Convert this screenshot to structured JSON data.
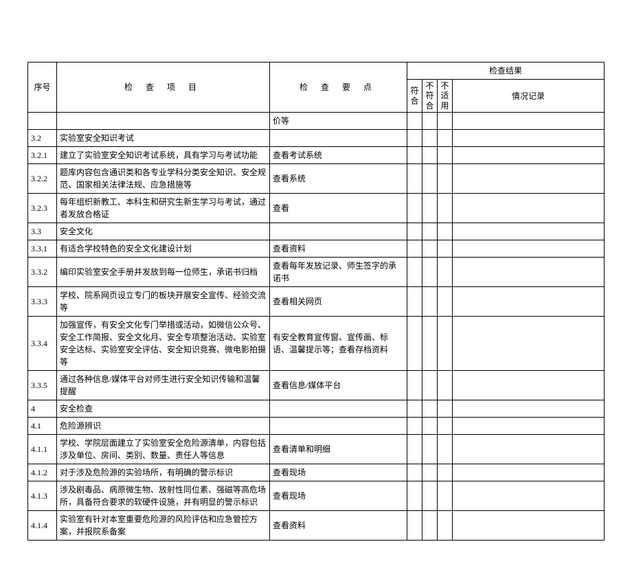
{
  "header": {
    "seq": "序号",
    "item": "检 查 项 目",
    "point": "检 查 要 点",
    "result": "检查结果",
    "conform": "符合",
    "nonconform": "不符合",
    "na": "不适用",
    "notes": "情况记录"
  },
  "rows": [
    {
      "seq": "",
      "item": "",
      "point": "价等"
    },
    {
      "seq": "3.2",
      "item": "实验室安全知识考试",
      "point": ""
    },
    {
      "seq": "3.2.1",
      "item": "建立了实验室安全知识考试系统，具有学习与考试功能",
      "point": "查看考试系统"
    },
    {
      "seq": "3.2.2",
      "item": "题库内容包含通识类和各专业学科分类安全知识、安全规范、国家相关法律法规、应急措施等",
      "point": "查看系统"
    },
    {
      "seq": "3.2.3",
      "item": "每年组织新教工、本科生和研究生新生学习与考试，通过者发放合格证",
      "point": "查看"
    },
    {
      "seq": "3.3",
      "item": "安全文化",
      "point": ""
    },
    {
      "seq": "3.3.1",
      "item": "有适合学校特色的安全文化建设计划",
      "point": "查看资料"
    },
    {
      "seq": "3.3.2",
      "item": "编印实验室安全手册并发放到每一位师生，承诺书归档",
      "point": "查看每年发放记录、师生签字的承诺书"
    },
    {
      "seq": "3.3.3",
      "item": "学校、院系网页设立专门的板块开展安全宣传、经验交流等",
      "point": "查看相关网页"
    },
    {
      "seq": "3.3.4",
      "item": "加强宣传，有安全文化专门举措或活动，如微信公众号、安全工作简报、安全文化月、安全专项整治活动、实验室安全达标、实验室安全评估、安全知识竞赛、微电影拍摄等",
      "point": "有安全教育宣传窗、宣传画、标语、温馨提示等；查看存档资料"
    },
    {
      "seq": "3.3.5",
      "item": "通过各种信息/媒体平台对师生进行安全知识传输和温馨提醒",
      "point": "查看信息/媒体平台"
    },
    {
      "seq": "4",
      "item": "安全检查",
      "point": ""
    },
    {
      "seq": "4.1",
      "item": "危险源辨识",
      "point": ""
    },
    {
      "seq": "4.1.1",
      "item": "学校、学院层面建立了实验室安全危险源清单，内容包括涉及单位、房间、类别、数量、责任人等信息",
      "point": "查看清单和明细"
    },
    {
      "seq": "4.1.2",
      "item": "对于涉及危险源的实验场所，有明确的警示标识",
      "point": "查看现场"
    },
    {
      "seq": "4.1.3",
      "item": "涉及剧毒品、病原微生物、放射性同位素、强磁等高危场所，具备符合要求的软硬件设施，并有明显的警示标识",
      "point": "查看现场"
    },
    {
      "seq": "4.1.4",
      "item": "实验室有针对本室重要危险源的风险评估和应急管控方案，并报院系备案",
      "point": "查看资料"
    }
  ]
}
